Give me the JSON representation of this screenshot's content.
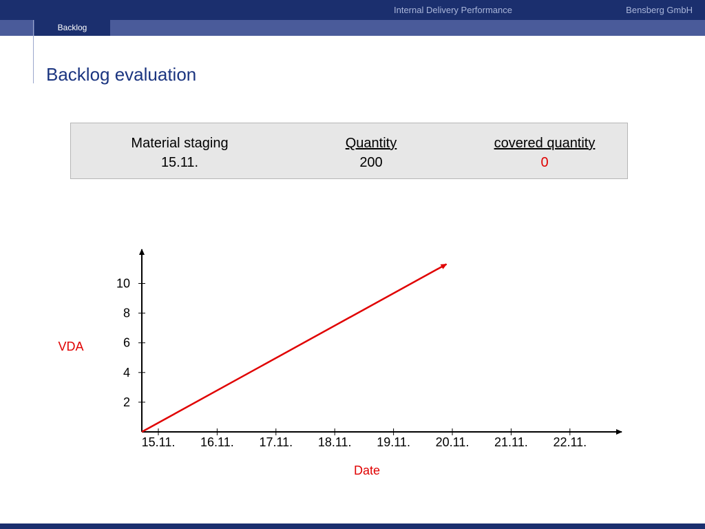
{
  "header": {
    "subtitle": "Internal Delivery Performance",
    "company": "Bensberg GmbH",
    "tab_label": "Backlog",
    "bar_color": "#1b2f6e",
    "tabbar_color": "#4a5b9a"
  },
  "page_title": "Backlog evaluation",
  "infobox": {
    "col1_header": "Material staging",
    "col1_value": "15.11.",
    "col2_header": "Quantity",
    "col2_value": "200",
    "col3_header": "covered quantity",
    "col3_value": "0"
  },
  "chart_data": {
    "type": "line",
    "title": "",
    "xlabel": "Date",
    "ylabel": "VDA",
    "categories": [
      "15.11.",
      "16.11.",
      "17.11.",
      "18.11.",
      "19.11.",
      "20.11.",
      "21.11.",
      "22.11."
    ],
    "y_ticks": [
      2,
      4,
      6,
      8,
      10
    ],
    "ylim": [
      0,
      12
    ],
    "series": [
      {
        "color": "#e00000",
        "x": [
          0,
          4.9
        ],
        "y": [
          0,
          11.3
        ]
      }
    ],
    "grid": false,
    "axis_label_color": "#e00000"
  }
}
